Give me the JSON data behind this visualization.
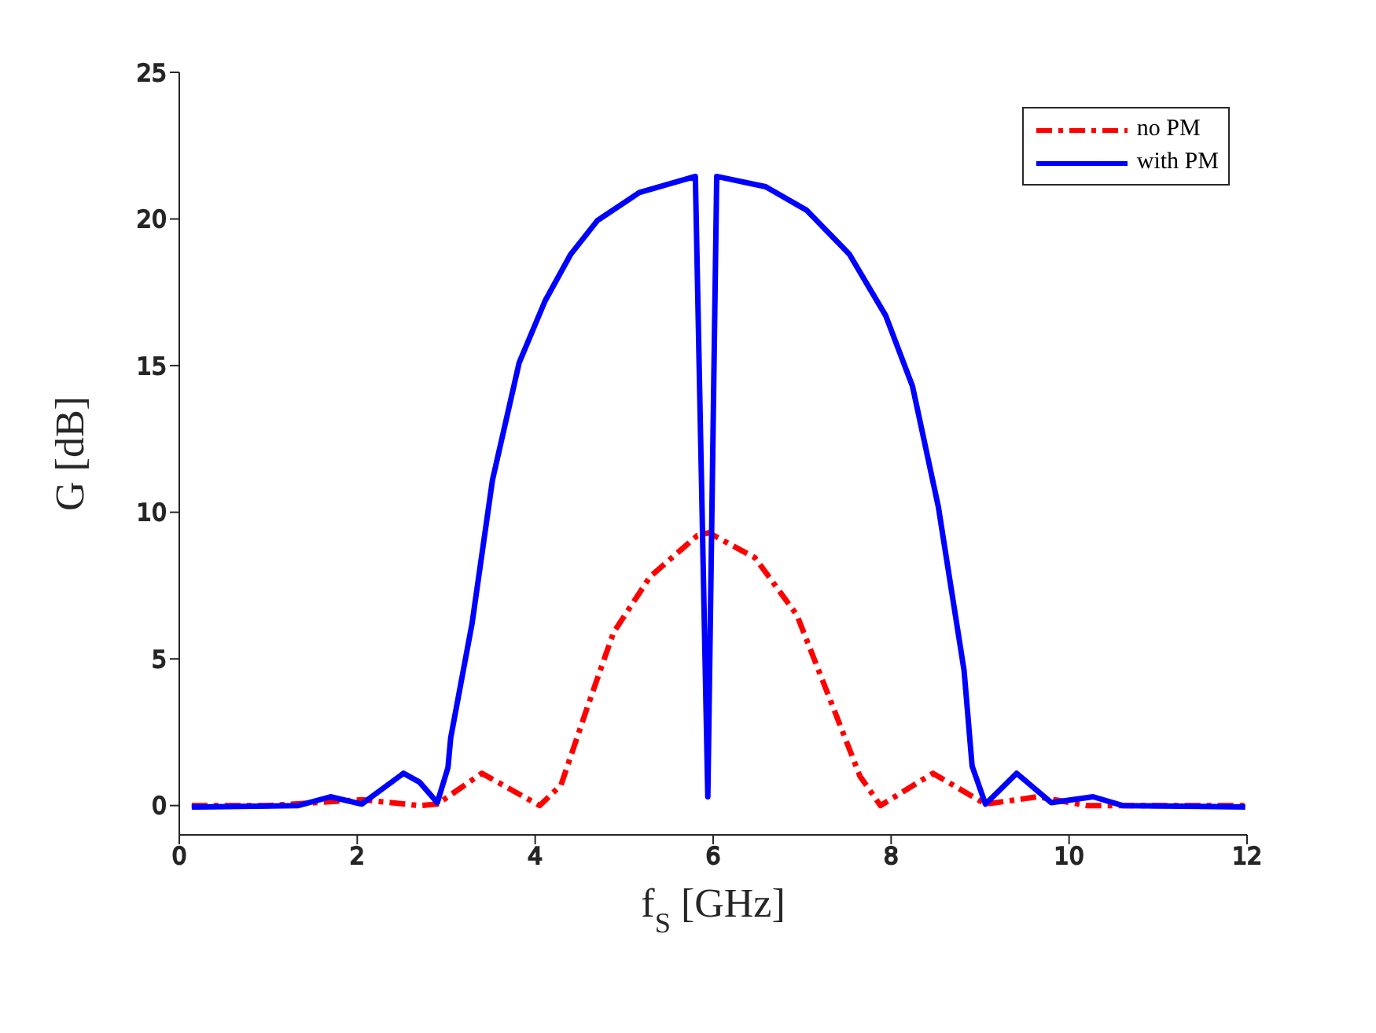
{
  "chart_data": {
    "type": "line",
    "xlabel": "f$_{S}$ [GHz]",
    "ylabel": "G [dB]",
    "xlim": [
      0,
      12
    ],
    "ylim": [
      -1,
      25
    ],
    "xticks": [
      0,
      2,
      4,
      6,
      8,
      10,
      12
    ],
    "yticks": [
      0,
      5,
      10,
      15,
      20,
      25
    ],
    "grid": false,
    "legend": "top right",
    "marker": "none",
    "series": [
      {
        "name": "no PM",
        "color": "#ff0000",
        "line_style": "dashdot",
        "x": [
          0.14,
          1.0,
          2.05,
          2.7,
          2.9,
          3.4,
          4.05,
          4.29,
          4.58,
          4.88,
          5.29,
          5.82,
          5.95,
          6.47,
          6.94,
          7.29,
          7.65,
          7.88,
          8.47,
          9.06,
          9.65,
          10.2,
          11,
          12
        ],
        "values": [
          0,
          0,
          0.2,
          0,
          0.05,
          1.1,
          0,
          0.7,
          3.3,
          5.9,
          7.8,
          9.2,
          9.3,
          8.45,
          6.5,
          3.8,
          1.0,
          0,
          1.1,
          0.05,
          0.3,
          0,
          0,
          0
        ]
      },
      {
        "name": "with PM",
        "color": "#0000ff",
        "line_style": "solid",
        "x": [
          0.14,
          1.34,
          1.7,
          2.05,
          2.52,
          2.7,
          2.9,
          3.02,
          3.05,
          3.29,
          3.52,
          3.82,
          4.11,
          4.4,
          4.7,
          5.17,
          5.8,
          5.94,
          6.04,
          6.59,
          7.05,
          7.53,
          7.94,
          8.24,
          8.53,
          8.82,
          8.91,
          9.06,
          9.41,
          9.8,
          10.27,
          10.6,
          11.98
        ],
        "values": [
          -0.05,
          0,
          0.3,
          0.05,
          1.1,
          0.8,
          0.1,
          1.3,
          2.3,
          6.2,
          11.1,
          15.1,
          17.2,
          18.8,
          19.95,
          20.9,
          21.45,
          0.3,
          21.45,
          21.1,
          20.3,
          18.8,
          16.7,
          14.3,
          10.2,
          4.6,
          1.35,
          0.05,
          1.1,
          0.1,
          0.3,
          0,
          -0.05
        ]
      }
    ]
  }
}
